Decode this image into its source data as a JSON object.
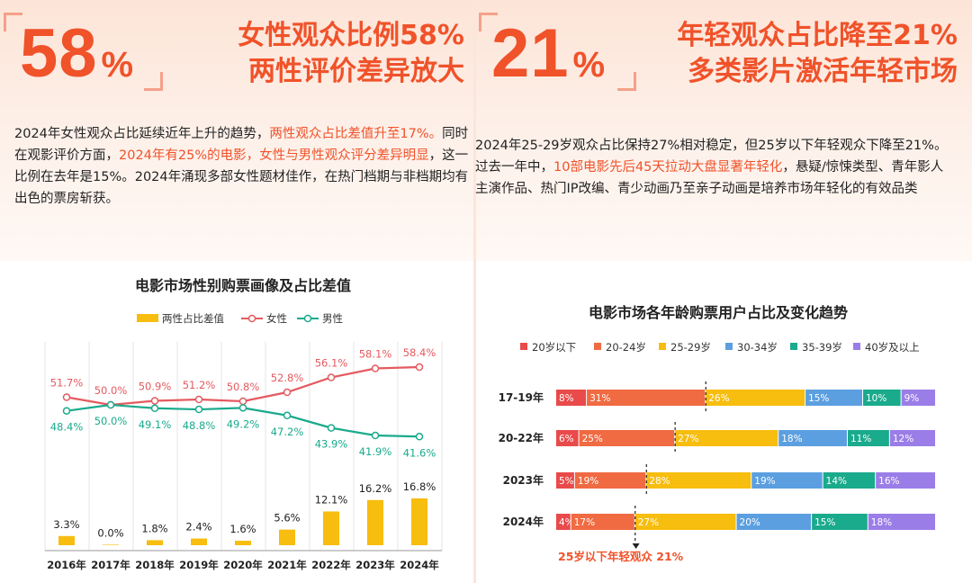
{
  "left": {
    "big_number": "58",
    "percent": "%",
    "headline_line1": "女性观众比例58%",
    "headline_line2": "两性评价差异放大",
    "para": [
      {
        "t": "2024年女性观众占比延续近年上升的趋势，",
        "h": false
      },
      {
        "t": "两性观众占比差值升至17%。",
        "h": true
      },
      {
        "t": "同时在观影评价方面，",
        "h": false
      },
      {
        "t": "2024年有25%的电影，女性与男性观众评分差异明显",
        "h": true
      },
      {
        "t": "，这一比例在去年是15%。2024年涌现多部女性题材佳作，在热门档期与非档期均有出色的票房斩获。",
        "h": false
      }
    ]
  },
  "right": {
    "big_number": "21",
    "percent": "%",
    "headline_line1": "年轻观众占比降至21%",
    "headline_line2": "多类影片激活年轻市场",
    "para": [
      {
        "t": "2024年25-29岁观众占比保持27%相对稳定，但25岁以下年轻观众下降至21%。过去一年中，",
        "h": false
      },
      {
        "t": "10部电影先后45天拉动大盘显著年轻化",
        "h": true
      },
      {
        "t": "，悬疑/惊悚类型、青年影人主演作品、热门IP改编、青少动画乃至亲子动画是培养市场年轻化的有效品类",
        "h": false
      }
    ]
  },
  "colors": {
    "accent": "#f0522a",
    "female": "#e45a5f",
    "male": "#1aaa8c",
    "diff_bar": "#f7bd0f",
    "grid": "#e6e6e6",
    "age": [
      "#e94a4a",
      "#f06a42",
      "#f7bd0f",
      "#5b9fe0",
      "#1aaa8c",
      "#9b7de8"
    ]
  },
  "chart_data": [
    {
      "type": "line",
      "title": "电影市场性别购票画像及占比差值",
      "legend": [
        "两性占比差值",
        "女性",
        "男性"
      ],
      "categories": [
        "2016年",
        "2017年",
        "2018年",
        "2019年",
        "2020年",
        "2021年",
        "2022年",
        "2023年",
        "2024年"
      ],
      "series": [
        {
          "name": "女性",
          "kind": "line",
          "values": [
            51.7,
            50.0,
            50.9,
            51.2,
            50.8,
            52.8,
            56.1,
            58.1,
            58.4
          ]
        },
        {
          "name": "男性",
          "kind": "line",
          "values": [
            48.4,
            50.0,
            49.1,
            48.8,
            49.2,
            47.2,
            43.9,
            41.9,
            41.6
          ]
        },
        {
          "name": "两性占比差值",
          "kind": "bar",
          "values": [
            3.3,
            0.0,
            1.8,
            2.4,
            1.6,
            5.6,
            12.1,
            16.2,
            16.8
          ]
        }
      ],
      "unit": "%"
    },
    {
      "type": "bar",
      "stacked": true,
      "orientation": "horizontal",
      "title": "电影市场各年龄购票用户占比及变化趋势",
      "categories": [
        "17-19年",
        "20-22年",
        "2023年",
        "2024年"
      ],
      "series": [
        {
          "name": "20岁以下",
          "values": [
            8,
            6,
            5,
            4
          ]
        },
        {
          "name": "20-24岁",
          "values": [
            31,
            25,
            19,
            17
          ]
        },
        {
          "name": "25-29岁",
          "values": [
            26,
            27,
            28,
            27
          ]
        },
        {
          "name": "30-34岁",
          "values": [
            15,
            18,
            19,
            20
          ]
        },
        {
          "name": "35-39岁",
          "values": [
            10,
            11,
            14,
            15
          ]
        },
        {
          "name": "40岁及以上",
          "values": [
            9,
            12,
            16,
            18
          ]
        }
      ],
      "unit": "%",
      "annotation": "25岁以下年轻观众 21%"
    }
  ]
}
